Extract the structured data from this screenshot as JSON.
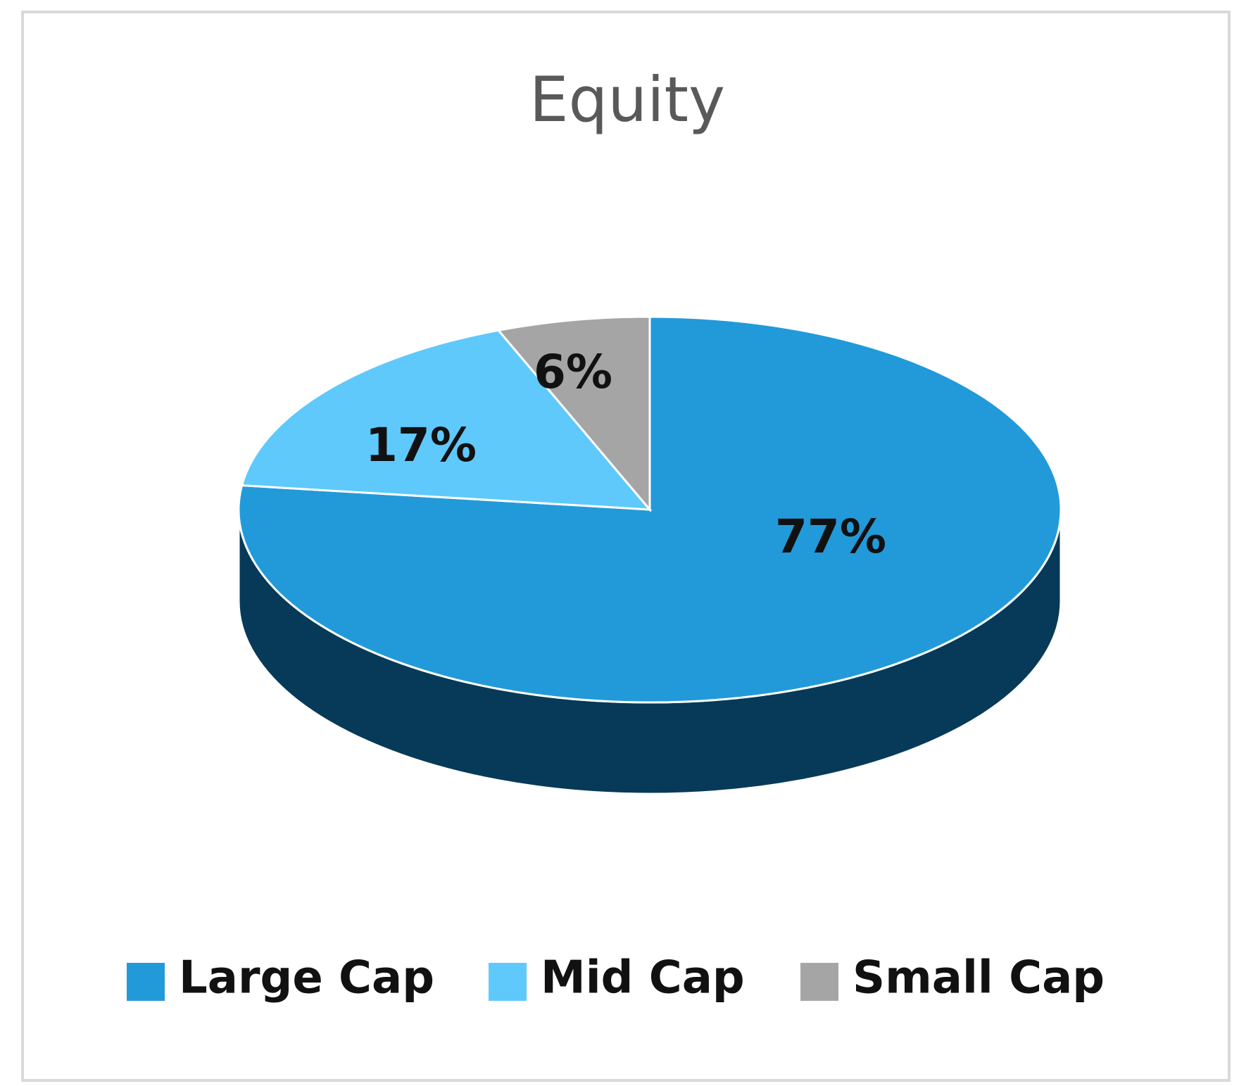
{
  "chart_data": {
    "type": "pie",
    "title": "Equity",
    "categories": [
      "Large Cap",
      "Mid Cap",
      "Small Cap"
    ],
    "values": [
      77,
      17,
      6
    ],
    "value_labels": [
      "77%",
      "17%",
      "6%"
    ],
    "colors": [
      "#229ad9",
      "#5fc9fc",
      "#a5a5a5"
    ],
    "side_colors": [
      "#063a58",
      "#2c7ea6",
      "#6e6e6e"
    ]
  }
}
